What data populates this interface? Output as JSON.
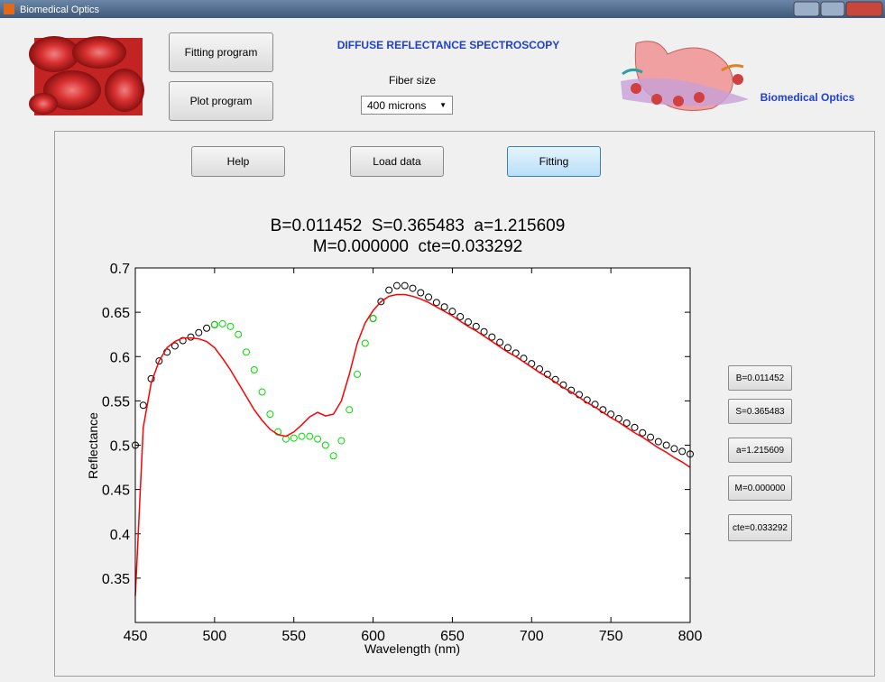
{
  "window": {
    "title": "Biomedical Optics"
  },
  "header": {
    "buttons": [
      "Fitting program",
      "Plot program"
    ],
    "heading": "DIFFUSE REFLECTANCE SPECTROSCOPY",
    "fiber_label": "Fiber size",
    "fiber_select": "400 microns",
    "brand": "Biomedical Optics"
  },
  "panel": {
    "buttons": [
      "Help",
      "Load data",
      "Fitting"
    ],
    "results": [
      "B=0.011452",
      "S=0.365483",
      "a=1.215609",
      "M=0.000000",
      "cte=0.033292"
    ]
  },
  "chart_data": {
    "type": "scatter",
    "title": "B=0.011452  S=0.365483  a=1.215609",
    "subtitle": "M=0.000000  cte=0.033292",
    "x_label": "Wavelength (nm)",
    "y_label": "Reflectance",
    "xlim": [
      450,
      800
    ],
    "ylim": [
      0.3,
      0.7
    ],
    "xticks": [
      450,
      500,
      550,
      600,
      650,
      700,
      750,
      800
    ],
    "yticks": [
      0.35,
      0.4,
      0.45,
      0.5,
      0.55,
      0.6,
      0.65,
      0.7
    ],
    "grid": false,
    "x": [
      450,
      455,
      460,
      465,
      470,
      475,
      480,
      485,
      490,
      495,
      500,
      505,
      510,
      515,
      520,
      525,
      530,
      535,
      540,
      545,
      550,
      555,
      560,
      565,
      570,
      575,
      580,
      585,
      590,
      595,
      600,
      605,
      610,
      615,
      620,
      625,
      630,
      635,
      640,
      645,
      650,
      655,
      660,
      665,
      670,
      675,
      680,
      685,
      690,
      695,
      700,
      705,
      710,
      715,
      720,
      725,
      730,
      735,
      740,
      745,
      750,
      755,
      760,
      765,
      770,
      775,
      780,
      785,
      790,
      795,
      800
    ],
    "series": [
      {
        "type": "scatter",
        "color": "#000000",
        "values": [
          0.5,
          0.545,
          0.575,
          0.595,
          0.605,
          0.612,
          0.618,
          0.622,
          0.627,
          0.632,
          0.636,
          null,
          null,
          null,
          null,
          null,
          null,
          null,
          null,
          null,
          null,
          null,
          null,
          null,
          null,
          null,
          null,
          null,
          null,
          null,
          0.643,
          0.662,
          0.675,
          0.68,
          0.68,
          0.677,
          0.672,
          0.667,
          0.661,
          0.656,
          0.651,
          0.645,
          0.639,
          0.634,
          0.628,
          0.622,
          0.616,
          0.61,
          0.604,
          0.598,
          0.592,
          0.586,
          0.58,
          0.574,
          0.568,
          0.562,
          0.557,
          0.551,
          0.546,
          0.54,
          0.535,
          0.53,
          0.525,
          0.52,
          0.514,
          0.509,
          0.504,
          0.5,
          0.496,
          0.493,
          0.49
        ]
      },
      {
        "type": "scatter",
        "color": "#00dd00",
        "values": [
          null,
          null,
          null,
          null,
          null,
          null,
          null,
          null,
          null,
          null,
          0.636,
          0.637,
          0.634,
          0.625,
          0.605,
          0.585,
          0.56,
          0.535,
          0.515,
          0.507,
          0.508,
          0.51,
          0.51,
          0.507,
          0.5,
          0.488,
          0.505,
          0.54,
          0.58,
          0.615,
          0.643,
          null,
          null,
          null,
          null,
          null,
          null,
          null,
          null,
          null,
          null,
          null,
          null,
          null,
          null,
          null,
          null,
          null,
          null,
          null,
          null,
          null,
          null,
          null,
          null,
          null,
          null,
          null,
          null,
          null,
          null,
          null,
          null,
          null,
          null,
          null,
          null,
          null,
          null,
          null,
          null
        ]
      },
      {
        "type": "line",
        "color": "#ff0000",
        "values": [
          0.33,
          0.52,
          0.57,
          0.595,
          0.61,
          0.617,
          0.621,
          0.621,
          0.62,
          0.617,
          0.61,
          0.598,
          0.585,
          0.57,
          0.555,
          0.54,
          0.528,
          0.518,
          0.512,
          0.51,
          0.515,
          0.523,
          0.532,
          0.537,
          0.533,
          0.535,
          0.55,
          0.58,
          0.615,
          0.638,
          0.652,
          0.662,
          0.668,
          0.67,
          0.67,
          0.668,
          0.665,
          0.661,
          0.656,
          0.651,
          0.646,
          0.64,
          0.634,
          0.629,
          0.623,
          0.617,
          0.611,
          0.605,
          0.6,
          0.594,
          0.588,
          0.582,
          0.577,
          0.571,
          0.565,
          0.56,
          0.554,
          0.548,
          0.543,
          0.537,
          0.531,
          0.526,
          0.52,
          0.514,
          0.509,
          0.503,
          0.497,
          0.492,
          0.486,
          0.481,
          0.475
        ]
      }
    ]
  }
}
